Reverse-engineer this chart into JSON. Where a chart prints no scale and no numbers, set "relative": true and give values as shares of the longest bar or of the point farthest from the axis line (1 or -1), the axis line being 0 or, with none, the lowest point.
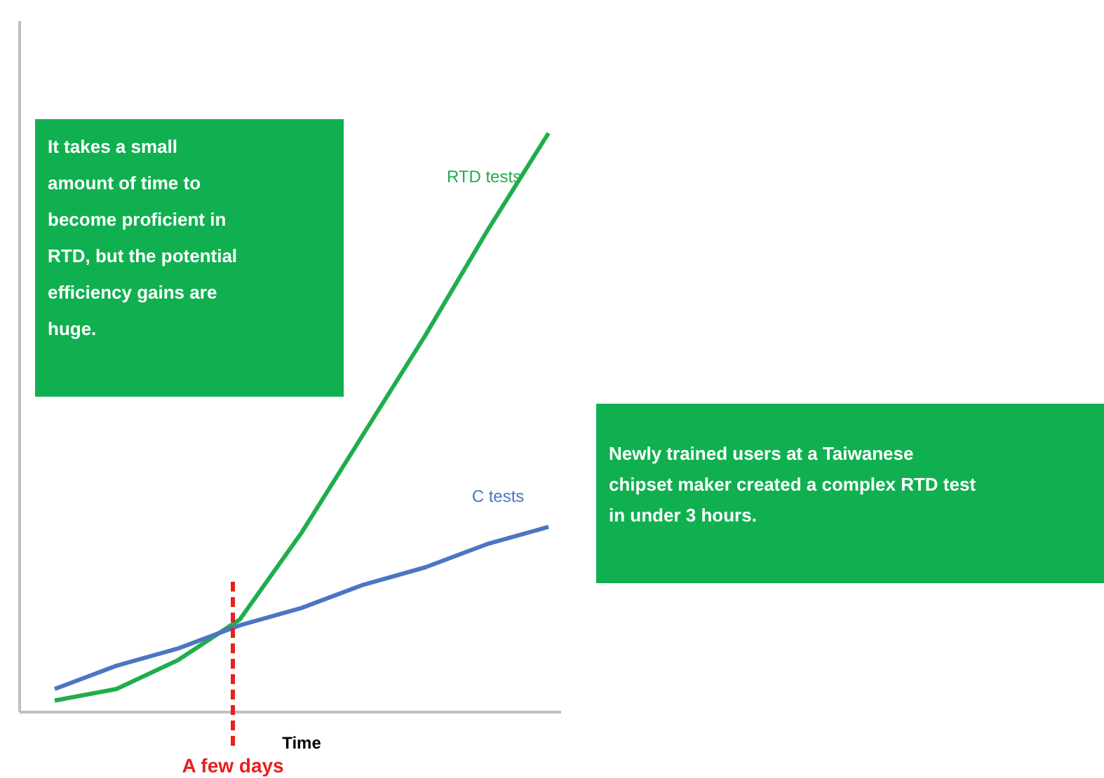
{
  "chart_data": {
    "type": "line",
    "relative": true,
    "xlabel": "Time",
    "categories": [
      null,
      null,
      null,
      null,
      null,
      null,
      null,
      null,
      null
    ],
    "series": [
      {
        "name": "RTD tests",
        "color": "#1fae4b",
        "values": [
          0.02,
          0.04,
          0.09,
          0.16,
          0.31,
          0.48,
          0.65,
          0.83,
          1
        ]
      },
      {
        "name": "C tests",
        "color": "#4a76c4",
        "values": [
          0.04,
          0.08,
          0.11,
          0.15,
          0.18,
          0.22,
          0.25,
          0.29,
          0.32
        ]
      }
    ],
    "annotations": [
      "It takes a small amount of time to become proficient in RTD, but the potential efficiency gains are huge.",
      "Newly trained users at a Taiwanese chipset maker created a complex RTD test in under 3 hours.",
      "A few days"
    ]
  }
}
